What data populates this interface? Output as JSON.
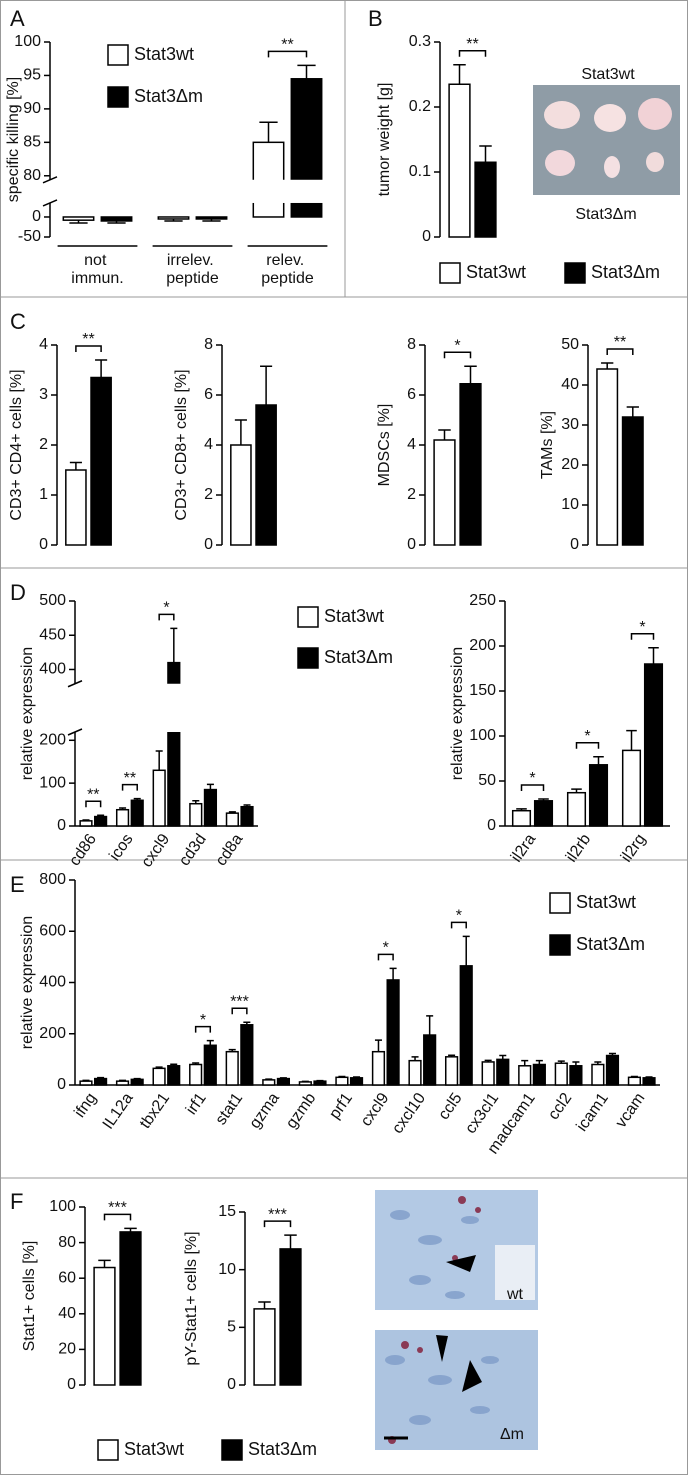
{
  "panels": [
    "A",
    "B",
    "C",
    "D",
    "E",
    "F"
  ],
  "images": [
    {
      "labels": [
        "Stat3wt",
        "Stat3Δm"
      ]
    },
    {
      "labels": [
        "wt",
        "Δm"
      ]
    }
  ],
  "chart_data": [
    {
      "type": "bar",
      "ylabel": "specific killing [%]",
      "categories": [
        "not immun.",
        "irrelev. peptide",
        "relev. peptide"
      ],
      "series": [
        {
          "name": "Stat3wt",
          "color": "#ffffff",
          "values": [
            -8,
            -5,
            85
          ],
          "errors": [
            7,
            5,
            3
          ]
        },
        {
          "name": "Stat3Δm",
          "color": "#000000",
          "values": [
            -10,
            -5,
            94.5
          ],
          "errors": [
            5,
            5,
            2
          ]
        }
      ],
      "ylim": [
        -50,
        100
      ],
      "ybreak": [
        25,
        80
      ],
      "yticks": [
        -50,
        0,
        80,
        85,
        90,
        95,
        100
      ],
      "significance": [
        {
          "category": "relev. peptide",
          "label": "**"
        }
      ],
      "legend": true
    },
    {
      "type": "bar",
      "ylabel": "tumor weight [g]",
      "categories": [
        null
      ],
      "series": [
        {
          "name": "Stat3wt",
          "color": "#ffffff",
          "values": [
            0.235
          ],
          "errors": [
            0.03
          ]
        },
        {
          "name": "Stat3Δm",
          "color": "#000000",
          "values": [
            0.115
          ],
          "errors": [
            0.025
          ]
        }
      ],
      "ylim": [
        0,
        0.3
      ],
      "yticks": [
        0,
        0.1,
        0.2,
        0.3
      ],
      "significance": [
        {
          "label": "**"
        }
      ],
      "legend": true
    },
    {
      "type": "bar",
      "ylabel": "CD3+ CD4+ cells [%]",
      "categories": [
        null
      ],
      "series": [
        {
          "name": "Stat3wt",
          "color": "#ffffff",
          "values": [
            1.5
          ],
          "errors": [
            0.15
          ]
        },
        {
          "name": "Stat3Δm",
          "color": "#000000",
          "values": [
            3.35
          ],
          "errors": [
            0.35
          ]
        }
      ],
      "ylim": [
        0,
        4
      ],
      "yticks": [
        0,
        1,
        2,
        3,
        4
      ],
      "significance": [
        {
          "label": "**"
        }
      ]
    },
    {
      "type": "bar",
      "ylabel": "CD3+ CD8+ cells [%]",
      "categories": [
        null
      ],
      "series": [
        {
          "name": "Stat3wt",
          "color": "#ffffff",
          "values": [
            4.0
          ],
          "errors": [
            1.0
          ]
        },
        {
          "name": "Stat3Δm",
          "color": "#000000",
          "values": [
            5.6
          ],
          "errors": [
            1.55
          ]
        }
      ],
      "ylim": [
        0,
        8
      ],
      "yticks": [
        0,
        2,
        4,
        6,
        8
      ]
    },
    {
      "type": "bar",
      "ylabel": "MDSCs [%]",
      "categories": [
        null
      ],
      "series": [
        {
          "name": "Stat3wt",
          "color": "#ffffff",
          "values": [
            4.2
          ],
          "errors": [
            0.4
          ]
        },
        {
          "name": "Stat3Δm",
          "color": "#000000",
          "values": [
            6.45
          ],
          "errors": [
            0.7
          ]
        }
      ],
      "ylim": [
        0,
        8
      ],
      "yticks": [
        0,
        2,
        4,
        6,
        8
      ],
      "significance": [
        {
          "label": "*"
        }
      ]
    },
    {
      "type": "bar",
      "ylabel": "TAMs [%]",
      "categories": [
        null
      ],
      "series": [
        {
          "name": "Stat3wt",
          "color": "#ffffff",
          "values": [
            44
          ],
          "errors": [
            1.5
          ]
        },
        {
          "name": "Stat3Δm",
          "color": "#000000",
          "values": [
            32
          ],
          "errors": [
            2.5
          ]
        }
      ],
      "ylim": [
        0,
        50
      ],
      "yticks": [
        0,
        10,
        20,
        30,
        40,
        50
      ],
      "significance": [
        {
          "label": "**"
        }
      ]
    },
    {
      "type": "bar",
      "ylabel": "relative expression",
      "categories": [
        "cd86",
        "icos",
        "cxcl9",
        "cd3d",
        "cd8a"
      ],
      "series": [
        {
          "name": "Stat3wt",
          "color": "#ffffff",
          "values": [
            12,
            38,
            130,
            52,
            30
          ],
          "errors": [
            2,
            4,
            45,
            7,
            3
          ]
        },
        {
          "name": "Stat3Δm",
          "color": "#000000",
          "values": [
            22,
            60,
            410,
            85,
            45
          ],
          "errors": [
            3,
            4,
            50,
            12,
            4
          ]
        }
      ],
      "ylim": [
        0,
        500
      ],
      "ybreak": [
        210,
        385
      ],
      "yticks": [
        0,
        100,
        200,
        400,
        450,
        500
      ],
      "significance": [
        {
          "category": "cd86",
          "label": "**"
        },
        {
          "category": "icos",
          "label": "**"
        },
        {
          "category": "cxcl9",
          "label": "*"
        }
      ],
      "legend": true
    },
    {
      "type": "bar",
      "ylabel": "relative expression",
      "categories": [
        "il2ra",
        "il2rb",
        "il2rg"
      ],
      "series": [
        {
          "name": "Stat3wt",
          "color": "#ffffff",
          "values": [
            17,
            37,
            84
          ],
          "errors": [
            2,
            4,
            22
          ]
        },
        {
          "name": "Stat3Δm",
          "color": "#000000",
          "values": [
            28,
            68,
            180
          ],
          "errors": [
            2,
            9,
            18
          ]
        }
      ],
      "ylim": [
        0,
        250
      ],
      "yticks": [
        0,
        50,
        100,
        150,
        200,
        250
      ],
      "significance": [
        {
          "category": "il2ra",
          "label": "*"
        },
        {
          "category": "il2rb",
          "label": "*"
        },
        {
          "category": "il2rg",
          "label": "*"
        }
      ]
    },
    {
      "type": "bar",
      "ylabel": "relative expression",
      "categories": [
        "ifng",
        "IL12a",
        "tbx21",
        "irf1",
        "stat1",
        "gzma",
        "gzmb",
        "prf1",
        "cxcl9",
        "cxcl10",
        "ccl5",
        "cx3cl1",
        "madcam1",
        "ccl2",
        "icam1",
        "vcam"
      ],
      "series": [
        {
          "name": "Stat3wt",
          "color": "#ffffff",
          "values": [
            15,
            15,
            65,
            80,
            130,
            20,
            12,
            30,
            130,
            95,
            110,
            90,
            75,
            85,
            80,
            30
          ],
          "errors": [
            3,
            3,
            5,
            6,
            8,
            3,
            2,
            3,
            45,
            15,
            6,
            6,
            20,
            8,
            10,
            3
          ]
        },
        {
          "name": "Stat3Δm",
          "color": "#000000",
          "values": [
            25,
            22,
            75,
            155,
            235,
            25,
            15,
            28,
            410,
            195,
            465,
            100,
            80,
            75,
            115,
            28
          ],
          "errors": [
            4,
            3,
            6,
            18,
            10,
            3,
            2,
            3,
            45,
            75,
            115,
            15,
            15,
            15,
            8,
            3
          ]
        }
      ],
      "ylim": [
        0,
        800
      ],
      "yticks": [
        0,
        200,
        400,
        600,
        800
      ],
      "significance": [
        {
          "category": "irf1",
          "label": "*"
        },
        {
          "category": "stat1",
          "label": "***"
        },
        {
          "category": "cxcl9",
          "label": "*"
        },
        {
          "category": "ccl5",
          "label": "*"
        }
      ],
      "legend": true
    },
    {
      "type": "bar",
      "ylabel": "Stat1+ cells [%]",
      "categories": [
        null
      ],
      "series": [
        {
          "name": "Stat3wt",
          "color": "#ffffff",
          "values": [
            66
          ],
          "errors": [
            4
          ]
        },
        {
          "name": "Stat3Δm",
          "color": "#000000",
          "values": [
            86
          ],
          "errors": [
            2
          ]
        }
      ],
      "ylim": [
        0,
        100
      ],
      "yticks": [
        0,
        20,
        40,
        60,
        80,
        100
      ],
      "significance": [
        {
          "label": "***"
        }
      ],
      "legend": true
    },
    {
      "type": "bar",
      "ylabel": "pY-Stat1+ cells [%]",
      "categories": [
        null
      ],
      "series": [
        {
          "name": "Stat3wt",
          "color": "#ffffff",
          "values": [
            6.6
          ],
          "errors": [
            0.6
          ]
        },
        {
          "name": "Stat3Δm",
          "color": "#000000",
          "values": [
            11.8
          ],
          "errors": [
            1.2
          ]
        }
      ],
      "ylim": [
        0,
        15
      ],
      "yticks": [
        0,
        5,
        10,
        15
      ],
      "significance": [
        {
          "label": "***"
        }
      ]
    }
  ]
}
